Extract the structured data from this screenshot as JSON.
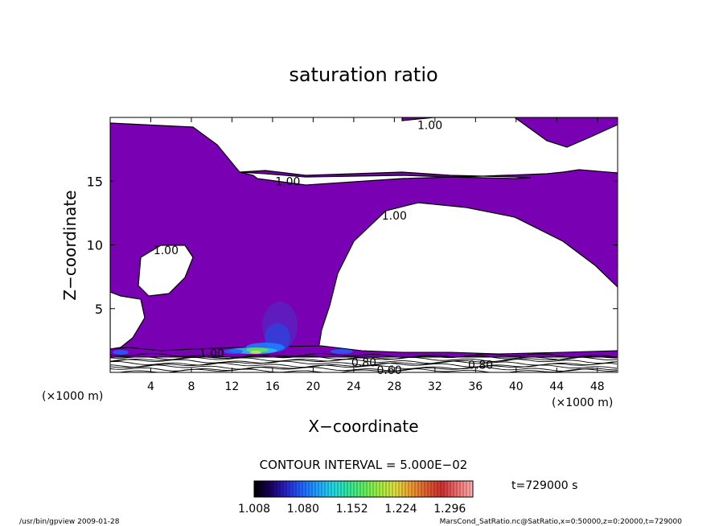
{
  "chart_data": {
    "type": "heatmap",
    "title": "saturation ratio",
    "xlabel": "X−coordinate",
    "ylabel": "Z−coordinate",
    "x_unit_left": "(×1000 m)",
    "x_unit_right": "(×1000 m)",
    "xlim": [
      0,
      50
    ],
    "ylim": [
      0,
      20
    ],
    "x_ticks": [
      4,
      8,
      12,
      16,
      20,
      24,
      28,
      32,
      36,
      40,
      44,
      48
    ],
    "y_ticks": [
      5,
      10,
      15
    ],
    "contour_labels": [
      {
        "text": "1.00",
        "x": 31.5,
        "y": 19.4
      },
      {
        "text": "1.00",
        "x": 17.5,
        "y": 15.0
      },
      {
        "text": "1.00",
        "x": 28.0,
        "y": 12.3
      },
      {
        "text": "1.00",
        "x": 5.5,
        "y": 9.6
      },
      {
        "text": "1.00",
        "x": 10.0,
        "y": 1.5
      },
      {
        "text": "0.80",
        "x": 25.0,
        "y": 0.8
      },
      {
        "text": "0.60",
        "x": 27.5,
        "y": 0.2
      },
      {
        "text": "0.80",
        "x": 36.5,
        "y": 0.6
      }
    ],
    "contour_interval_label": "CONTOUR INTERVAL = 5.000E−02",
    "colorbar": {
      "tick_labels": [
        "1.008",
        "1.080",
        "1.152",
        "1.224",
        "1.296"
      ],
      "min": 1.008,
      "max": 1.33,
      "colors": [
        "#000000",
        "#1a0058",
        "#2a20c8",
        "#2060ff",
        "#20a0ff",
        "#20d8e8",
        "#30e8a0",
        "#60f060",
        "#a0f040",
        "#e0e040",
        "#f0a030",
        "#e06030",
        "#d03030",
        "#f07070",
        "#ffb0b0"
      ]
    },
    "time_label": "t=729000 s",
    "fill_color": "#7a00b4"
  },
  "footer": {
    "left": "/usr/bin/gpview   2009-01-28",
    "right": "MarsCond_SatRatio.nc@SatRatio,x=0:50000,z=0:20000,t=729000"
  }
}
